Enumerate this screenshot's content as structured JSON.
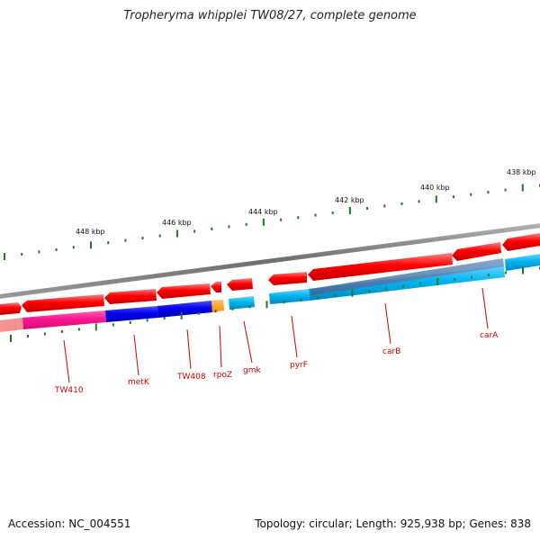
{
  "title": "Tropheryma whipplei TW08/27, complete genome",
  "ruler": {
    "labels": [
      "438 kbp",
      "440 kbp",
      "442 kbp",
      "444 kbp",
      "446 kbp",
      "448 kbp"
    ]
  },
  "genes": {
    "TW410": "TW410",
    "metK": "metK",
    "TW408": "TW408",
    "rpoZ": "rpoZ",
    "gmk": "gmk",
    "pyrF": "pyrF",
    "carB": "carB",
    "carA": "carA"
  },
  "colors": {
    "cds_strand": "#ff0000",
    "cog_blue": "#1a1aff",
    "cog_pink": "#ff3399",
    "cog_orange": "#ff9900",
    "cog_cyan": "#00b7ff",
    "cog_steel": "#4a7ab0",
    "backbone": "#808080",
    "tick": "#1a7a1a",
    "label": "#cc0000"
  },
  "footer": {
    "accession": "Accession: NC_004551",
    "summary": "Topology: circular; Length: 925,938 bp; Genes: 838"
  }
}
